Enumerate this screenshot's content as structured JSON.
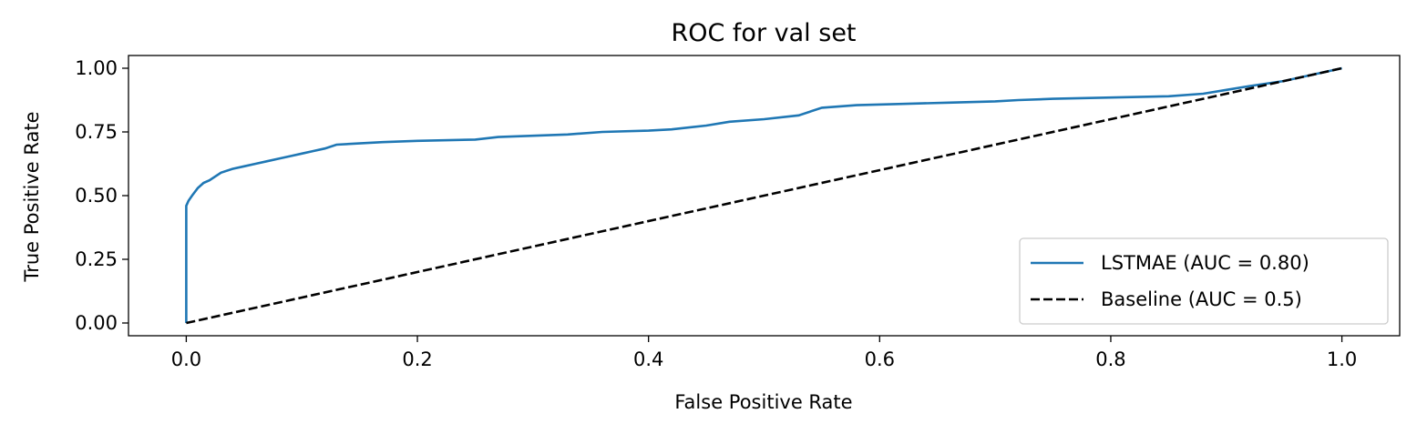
{
  "chart_data": {
    "type": "line",
    "title": "ROC for val set",
    "xlabel": "False Positive Rate",
    "ylabel": "True Positive Rate",
    "xlim": [
      -0.05,
      1.05
    ],
    "ylim": [
      -0.05,
      1.05
    ],
    "xticks": [
      0.0,
      0.2,
      0.4,
      0.6,
      0.8,
      1.0
    ],
    "xtick_labels": [
      "0.0",
      "0.2",
      "0.4",
      "0.6",
      "0.8",
      "1.0"
    ],
    "yticks": [
      0.0,
      0.25,
      0.5,
      0.75,
      1.0
    ],
    "ytick_labels": [
      "0.00",
      "0.25",
      "0.50",
      "0.75",
      "1.00"
    ],
    "grid": false,
    "legend_position": "lower right",
    "series": [
      {
        "name": "LSTMAE (AUC = 0.80)",
        "color": "#1f77b4",
        "style": "solid",
        "x": [
          0.0,
          0.0,
          0.0,
          0.0,
          0.002,
          0.005,
          0.01,
          0.015,
          0.02,
          0.03,
          0.04,
          0.05,
          0.06,
          0.07,
          0.08,
          0.09,
          0.1,
          0.11,
          0.12,
          0.13,
          0.15,
          0.17,
          0.2,
          0.25,
          0.27,
          0.3,
          0.33,
          0.36,
          0.4,
          0.42,
          0.45,
          0.47,
          0.5,
          0.53,
          0.55,
          0.58,
          0.62,
          0.66,
          0.7,
          0.72,
          0.75,
          0.8,
          0.85,
          0.88,
          0.9,
          0.92,
          0.95,
          0.97,
          1.0
        ],
        "y": [
          0.0,
          0.3,
          0.44,
          0.46,
          0.48,
          0.5,
          0.53,
          0.55,
          0.56,
          0.59,
          0.605,
          0.615,
          0.625,
          0.635,
          0.645,
          0.655,
          0.665,
          0.675,
          0.685,
          0.7,
          0.705,
          0.71,
          0.715,
          0.72,
          0.73,
          0.735,
          0.74,
          0.75,
          0.755,
          0.76,
          0.775,
          0.79,
          0.8,
          0.815,
          0.845,
          0.855,
          0.86,
          0.865,
          0.87,
          0.875,
          0.88,
          0.885,
          0.89,
          0.9,
          0.915,
          0.93,
          0.95,
          0.97,
          1.0
        ]
      },
      {
        "name": "Baseline (AUC = 0.5)",
        "color": "#000000",
        "style": "dashed",
        "x": [
          0.0,
          1.0
        ],
        "y": [
          0.0,
          1.0
        ]
      }
    ]
  }
}
